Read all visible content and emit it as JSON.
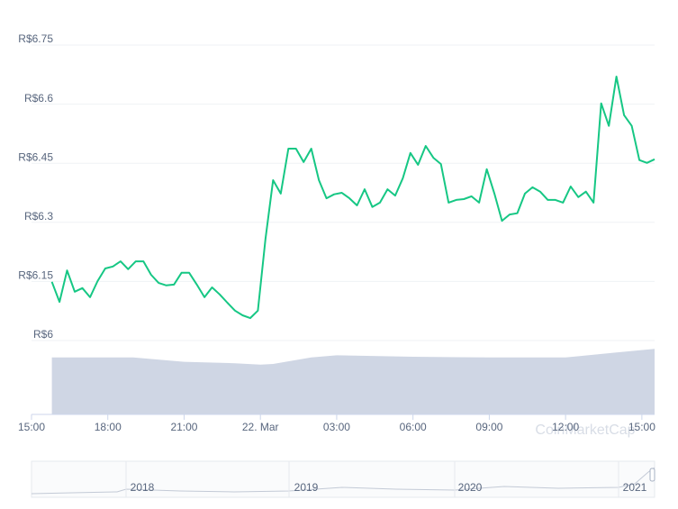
{
  "chart_data": {
    "type": "line",
    "watermark": "CoinMarketCap",
    "xlim": [
      0,
      24.5
    ],
    "xticks": [
      {
        "value": 0,
        "label": "15:00"
      },
      {
        "value": 3,
        "label": "18:00"
      },
      {
        "value": 6,
        "label": "21:00"
      },
      {
        "value": 9,
        "label": "22. Mar"
      },
      {
        "value": 12,
        "label": "03:00"
      },
      {
        "value": 15,
        "label": "06:00"
      },
      {
        "value": 18,
        "label": "09:00"
      },
      {
        "value": 21,
        "label": "12:00"
      },
      {
        "value": 24,
        "label": "15:00"
      }
    ],
    "ylim": [
      6,
      6.75
    ],
    "yticks": [
      {
        "value": 6,
        "label": "R$6"
      },
      {
        "value": 6.15,
        "label": "R$6.15"
      },
      {
        "value": 6.3,
        "label": "R$6.3"
      },
      {
        "value": 6.45,
        "label": "R$6.45"
      },
      {
        "value": 6.6,
        "label": "R$6.6"
      },
      {
        "value": 6.75,
        "label": "R$6.75"
      }
    ],
    "y2lim": [
      0,
      100
    ],
    "grid": true,
    "series": [
      {
        "color": "#16c784",
        "x": [
          0.8,
          1.1,
          1.4,
          1.7,
          2.0,
          2.3,
          2.6,
          2.9,
          3.2,
          3.5,
          3.8,
          4.1,
          4.4,
          4.7,
          5.0,
          5.3,
          5.6,
          5.9,
          6.2,
          6.5,
          6.8,
          7.1,
          7.4,
          7.7,
          8.0,
          8.3,
          8.6,
          8.9,
          9.2,
          9.5,
          9.8,
          10.1,
          10.4,
          10.7,
          11.0,
          11.3,
          11.6,
          11.9,
          12.2,
          12.5,
          12.8,
          13.1,
          13.4,
          13.7,
          14.0,
          14.3,
          14.6,
          14.9,
          15.2,
          15.5,
          15.8,
          16.1,
          16.4,
          16.7,
          17.0,
          17.3,
          17.6,
          17.9,
          18.2,
          18.5,
          18.8,
          19.1,
          19.4,
          19.7,
          20.0,
          20.3,
          20.6,
          20.9,
          21.2,
          21.5,
          21.8,
          22.1,
          22.4,
          22.7,
          23.0,
          23.3,
          23.6,
          23.9,
          24.2,
          24.5
        ],
        "values": [
          6.149,
          6.098,
          6.178,
          6.124,
          6.133,
          6.11,
          6.151,
          6.183,
          6.188,
          6.201,
          6.181,
          6.201,
          6.201,
          6.167,
          6.146,
          6.14,
          6.142,
          6.172,
          6.172,
          6.142,
          6.11,
          6.135,
          6.117,
          6.096,
          6.076,
          6.064,
          6.057,
          6.076,
          6.259,
          6.407,
          6.373,
          6.487,
          6.487,
          6.453,
          6.487,
          6.407,
          6.361,
          6.371,
          6.375,
          6.361,
          6.343,
          6.384,
          6.339,
          6.35,
          6.384,
          6.368,
          6.412,
          6.476,
          6.446,
          6.494,
          6.464,
          6.448,
          6.35,
          6.357,
          6.359,
          6.366,
          6.35,
          6.435,
          6.373,
          6.304,
          6.32,
          6.323,
          6.373,
          6.389,
          6.378,
          6.357,
          6.357,
          6.35,
          6.391,
          6.364,
          6.378,
          6.35,
          6.602,
          6.545,
          6.67,
          6.572,
          6.545,
          6.458,
          6.451,
          6.46
        ]
      },
      {
        "color": "#cfd6e4",
        "axis": "y2",
        "x": [
          0.8,
          4,
          6,
          8,
          9,
          9.5,
          11,
          12,
          15,
          18,
          21,
          23,
          24.5
        ],
        "values": [
          79,
          79,
          73,
          71,
          69,
          70,
          79,
          82,
          80,
          79,
          79,
          86,
          91
        ]
      }
    ]
  },
  "navigator": {
    "labels": [
      "2018",
      "2019",
      "2020",
      "2021"
    ]
  }
}
